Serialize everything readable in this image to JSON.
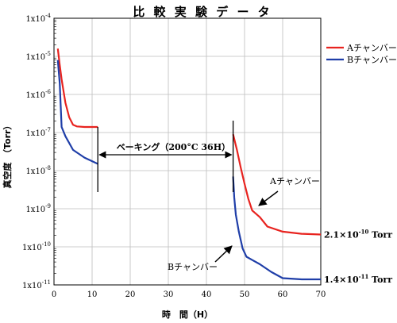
{
  "chart_data": {
    "type": "line",
    "title": "比 較 実 験 デ ー タ",
    "xlabel": "時　間（H）",
    "ylabel": "真空度　（Torr）",
    "xlim": [
      0,
      70
    ],
    "ylim_log10": [
      -11,
      -4
    ],
    "x_ticks": [
      "0",
      "10",
      "20",
      "30",
      "40",
      "50",
      "60",
      "70"
    ],
    "y_ticks": [
      {
        "exp": -4,
        "label": "1x10",
        "sup": "-4"
      },
      {
        "exp": -5,
        "label": "1x10",
        "sup": "-5"
      },
      {
        "exp": -6,
        "label": "1x10",
        "sup": "-6"
      },
      {
        "exp": -7,
        "label": "1x10",
        "sup": "-7"
      },
      {
        "exp": -8,
        "label": "1x10",
        "sup": "-8"
      },
      {
        "exp": -9,
        "label": "1x10",
        "sup": "-9"
      },
      {
        "exp": -10,
        "label": "1x10",
        "sup": "-10"
      },
      {
        "exp": -11,
        "label": "1x10",
        "sup": "-11"
      }
    ],
    "grid": true,
    "legend_position": "right",
    "series": [
      {
        "name": "Aチャンバー",
        "color": "#e8231f",
        "segments": [
          [
            [
              1,
              1.6e-05
            ],
            [
              1.5,
              6e-06
            ],
            [
              2,
              2.5e-06
            ],
            [
              3,
              6e-07
            ],
            [
              4,
              2.5e-07
            ],
            [
              5,
              1.6e-07
            ],
            [
              6,
              1.45e-07
            ],
            [
              8,
              1.4e-07
            ],
            [
              11.5,
              1.4e-07
            ]
          ],
          [
            [
              47,
              9e-08
            ],
            [
              48,
              3.5e-08
            ],
            [
              49,
              1.2e-08
            ],
            [
              50,
              4.5e-09
            ],
            [
              51,
              1.8e-09
            ],
            [
              52,
              9e-10
            ],
            [
              54,
              6e-10
            ],
            [
              56,
              3.4e-10
            ],
            [
              60,
              2.5e-10
            ],
            [
              65,
              2.2e-10
            ],
            [
              70,
              2.1e-10
            ]
          ]
        ]
      },
      {
        "name": "Bチャンバー",
        "color": "#1f3ea8",
        "segments": [
          [
            [
              1,
              8e-06
            ],
            [
              1.5,
              2e-06
            ],
            [
              2,
              1.4e-07
            ],
            [
              3,
              8e-08
            ],
            [
              5,
              3.5e-08
            ],
            [
              8,
              2.2e-08
            ],
            [
              11.5,
              1.5e-08
            ]
          ],
          [
            [
              47,
              7e-09
            ],
            [
              47.3,
              2e-09
            ],
            [
              47.7,
              7e-10
            ],
            [
              48.5,
              2.5e-10
            ],
            [
              49.5,
              9e-11
            ],
            [
              50.5,
              5.5e-11
            ],
            [
              52,
              4.5e-11
            ],
            [
              54,
              3.5e-11
            ],
            [
              57,
              2.2e-11
            ],
            [
              60,
              1.5e-11
            ],
            [
              65,
              1.4e-11
            ],
            [
              70,
              1.4e-11
            ]
          ]
        ]
      }
    ],
    "annotations": {
      "baking": "ベーキング（200°C 36H）",
      "baking_range": [
        11.5,
        47
      ],
      "label_a": "Aチャンバー",
      "label_b": "Bチャンバー",
      "end_a_prefix": "2.1×10",
      "end_a_sup": "-10",
      "end_a_suffix": " Torr",
      "end_a_value": 2.1e-10,
      "end_b_prefix": "1.4×10",
      "end_b_sup": "-11",
      "end_b_suffix": " Torr",
      "end_b_value": 1.4e-11
    }
  }
}
